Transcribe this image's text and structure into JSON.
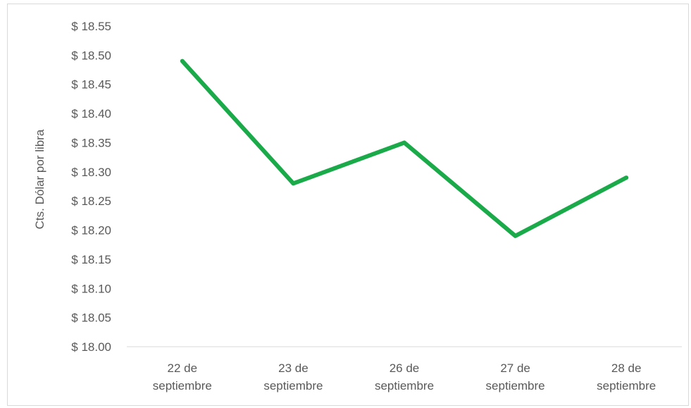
{
  "chart_data": {
    "type": "line",
    "categories": [
      [
        "22 de",
        "septiembre"
      ],
      [
        "23 de",
        "septiembre"
      ],
      [
        "26 de",
        "septiembre"
      ],
      [
        "27 de",
        "septiembre"
      ],
      [
        "28 de",
        "septiembre"
      ]
    ],
    "series": [
      {
        "values": [
          18.49,
          18.28,
          18.35,
          18.19,
          18.29
        ],
        "color": "#1aaa4a"
      }
    ],
    "ylabel": "Cts. Dólar por libra",
    "ylim": [
      18.0,
      18.55
    ],
    "ytick_step": 0.05,
    "ytick_prefix": "$ ",
    "grid": false,
    "legend": "none"
  }
}
